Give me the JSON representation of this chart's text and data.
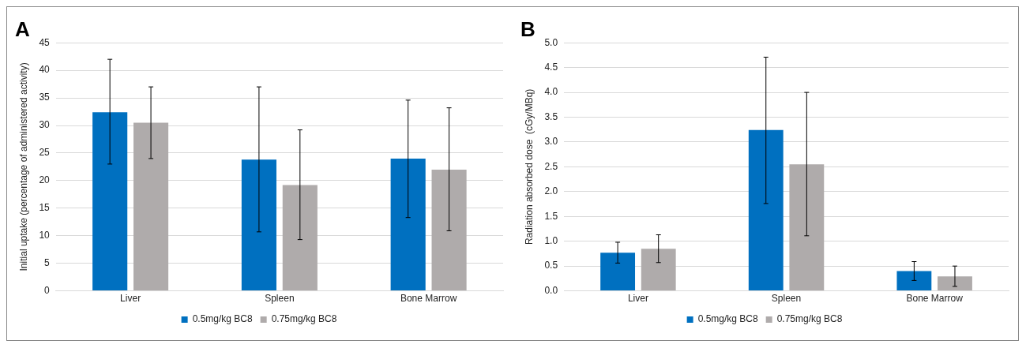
{
  "chart_data": [
    {
      "type": "bar",
      "title": "A",
      "ylabel": "Initial uptake (percentage of administered activity)",
      "categories": [
        "Liver",
        "Spleen",
        "Bone Marrow"
      ],
      "series": [
        {
          "name": "0.5mg/kg BC8",
          "color": "#0070c0",
          "values": [
            32.4,
            23.8,
            24.0
          ],
          "errors": [
            [
              23,
              42
            ],
            [
              10.7,
              37
            ],
            [
              13.3,
              34.6
            ]
          ]
        },
        {
          "name": "0.75mg/kg BC8",
          "color": "#afabab",
          "values": [
            30.5,
            19.2,
            22.0
          ],
          "errors": [
            [
              24,
              37
            ],
            [
              9.3,
              29.2
            ],
            [
              10.9,
              33.2
            ]
          ]
        }
      ],
      "ylim": [
        0,
        45
      ],
      "yticks": [
        0,
        5,
        10,
        15,
        20,
        25,
        30,
        35,
        40,
        45
      ],
      "grid": "y",
      "legend": "bottom"
    },
    {
      "type": "bar",
      "title": "B",
      "ylabel": "Radiation absorbed dose  (cGy/MBq)",
      "categories": [
        "Liver",
        "Spleen",
        "Bone Marrow"
      ],
      "series": [
        {
          "name": "0.5mg/kg BC8",
          "color": "#0070c0",
          "values": [
            0.77,
            3.24,
            0.4
          ],
          "errors": [
            [
              0.56,
              0.98
            ],
            [
              1.76,
              4.71
            ],
            [
              0.21,
              0.59
            ]
          ]
        },
        {
          "name": "0.75mg/kg BC8",
          "color": "#afabab",
          "values": [
            0.85,
            2.55,
            0.29
          ],
          "errors": [
            [
              0.57,
              1.13
            ],
            [
              1.11,
              4.0
            ],
            [
              0.09,
              0.5
            ]
          ]
        }
      ],
      "ylim": [
        0,
        5
      ],
      "yticks": [
        {
          "value": 0,
          "label": "0.0"
        },
        {
          "value": 0.5,
          "label": "0.5"
        },
        {
          "value": 1,
          "label": "1.0"
        },
        {
          "value": 1.5,
          "label": "1.5"
        },
        {
          "value": 2,
          "label": "2.0"
        },
        {
          "value": 2.5,
          "label": "2.5"
        },
        {
          "value": 3,
          "label": "3.0"
        },
        {
          "value": 3.5,
          "label": "3.5"
        },
        {
          "value": 4,
          "label": "4.0"
        },
        {
          "value": 4.5,
          "label": "4.5"
        },
        {
          "value": 5,
          "label": "5.0"
        }
      ],
      "grid": "y",
      "legend": "bottom"
    }
  ]
}
